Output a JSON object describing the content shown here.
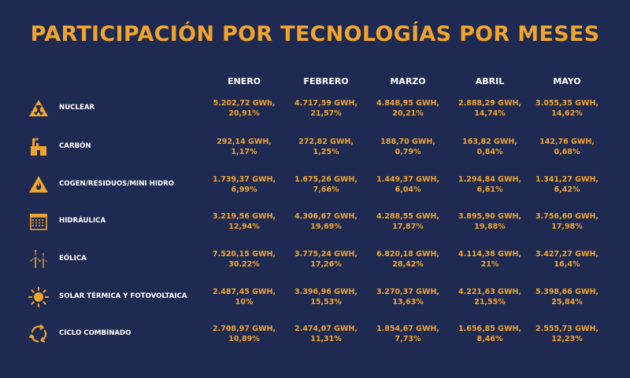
{
  "title": "PARTICIPACIÓN POR TECNOLOGÍAS POR MESES",
  "colors": {
    "background": "#1f2a52",
    "accent": "#f0a42c",
    "text": "#ffffff"
  },
  "months": [
    "ENERO",
    "FEBRERO",
    "MARZO",
    "ABRIL",
    "MAYO"
  ],
  "chart_data": {
    "type": "table",
    "title": "PARTICIPACIÓN POR TECNOLOGÍAS POR MESES",
    "columns": [
      "ENERO",
      "FEBRERO",
      "MARZO",
      "ABRIL",
      "MAYO"
    ],
    "rows": [
      {
        "name": "NUCLEAR",
        "icon": "nuclear-warning-icon",
        "gwh": [
          "5.202,72 GWh,",
          "4.717,59 GWH,",
          "4.848,95 GWH,",
          "2.888,29 GWH,",
          "3.055,35 GWH,"
        ],
        "pct": [
          "20,91%",
          "21,57%",
          "20,21%",
          "14,74%",
          "14,62%"
        ]
      },
      {
        "name": "CARBÓN",
        "icon": "factory-icon",
        "gwh": [
          "292,14 GWH,",
          "272,82 GWH,",
          "188,70 GWH,",
          "163,82 GWH,",
          "142,76 GWH,"
        ],
        "pct": [
          "1,17%",
          "1,25%",
          "0,79%",
          "0,84%",
          "0,68%"
        ]
      },
      {
        "name": "COGEN/RESIDUOS/MINI HIDRO",
        "icon": "fire-warning-icon",
        "gwh": [
          "1.739,37 GWH,",
          "1.675,26 GWH,",
          "1.449,37 GWH,",
          "1.294,84 GWH,",
          "1.341,27 GWH,"
        ],
        "pct": [
          "6,99%",
          "7,66%",
          "6,04%",
          "6,61%",
          "6,42%"
        ]
      },
      {
        "name": "HIDRÁULICA",
        "icon": "dam-icon",
        "gwh": [
          "3.219,56 GWH,",
          "4.306,67 GWH,",
          "4.288,55 GWH,",
          "3.895,90 GWH,",
          "3.756,60 GWH,"
        ],
        "pct": [
          "12,94%",
          "19,69%",
          "17,87%",
          "19,88%",
          "17,98%"
        ]
      },
      {
        "name": "EÓLICA",
        "icon": "wind-turbine-icon",
        "gwh": [
          "7.520,15 GWH,",
          "3.775,24 GWH,",
          "6.820,18 GWH,",
          "4.114,38 GWH,",
          "3.427,27 GWH,"
        ],
        "pct": [
          "30.22%",
          "17,26%",
          "28,42%",
          "21%",
          "16,4%"
        ]
      },
      {
        "name": "SOLAR TÉRMICA Y FOTOVOLTAICA",
        "icon": "sun-icon",
        "gwh": [
          "2.487,45 GWH,",
          "3.396,96 GWH,",
          "3.270,37 GWH,",
          "4.221,63 GWH,",
          "5.398,66 GWH,"
        ],
        "pct": [
          "10%",
          "15,53%",
          "13,63%",
          "21,55%",
          "25,84%"
        ]
      },
      {
        "name": "CICLO COMBINADO",
        "icon": "cycle-arrows-icon",
        "gwh": [
          "2.708,97 GWH,",
          "2.474,07 GWH,",
          "1.854,67 GWH,",
          "1.656,85 GWH,",
          "2.555,73 GWH,"
        ],
        "pct": [
          "10,89%",
          "11,31%",
          "7,73%",
          "8,46%",
          "12,23%"
        ]
      }
    ]
  }
}
